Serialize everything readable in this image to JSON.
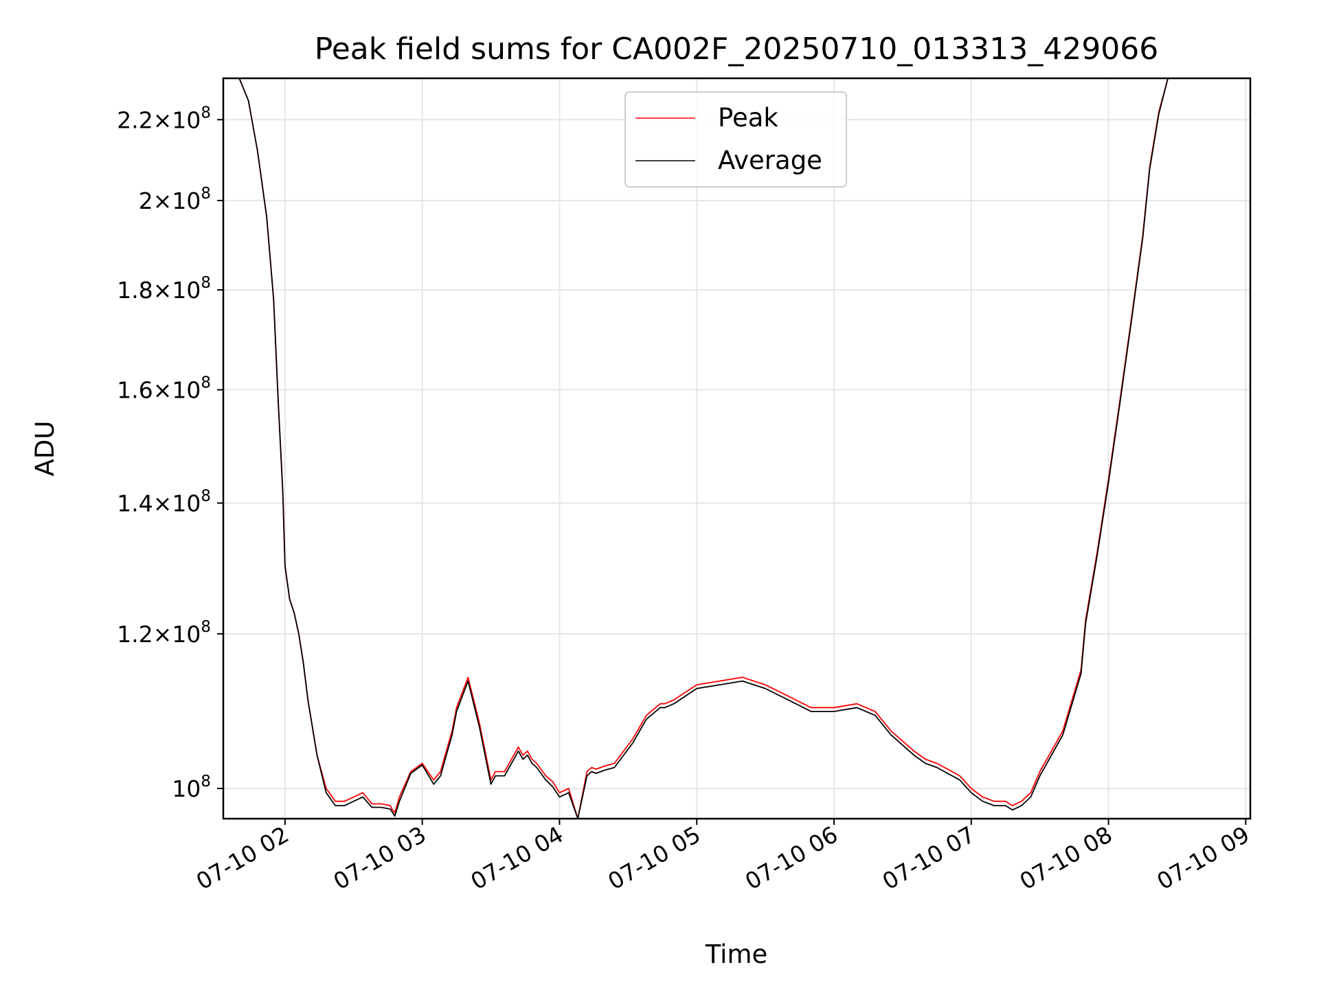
{
  "chart_data": {
    "type": "line",
    "title": "Peak field sums for CA002F_20250710_013313_429066",
    "xlabel": "Time",
    "ylabel": "ADU",
    "y_scale": "log",
    "grid": true,
    "legend_position": "top-center",
    "xlim": [
      "2025-07-10 01:33",
      "2025-07-10 09:02"
    ],
    "ylim": [
      96500000,
      231000000
    ],
    "x_ticks": [
      "07-10 02",
      "07-10 03",
      "07-10 04",
      "07-10 05",
      "07-10 06",
      "07-10 07",
      "07-10 08",
      "07-10 09"
    ],
    "y_ticks": [
      {
        "value": 100000000,
        "mantissa": "",
        "exponent": "8"
      },
      {
        "value": 120000000,
        "mantissa": "1.2",
        "exponent": "8"
      },
      {
        "value": 140000000,
        "mantissa": "1.4",
        "exponent": "8"
      },
      {
        "value": 160000000,
        "mantissa": "1.6",
        "exponent": "8"
      },
      {
        "value": 180000000,
        "mantissa": "1.8",
        "exponent": "8"
      },
      {
        "value": 200000000,
        "mantissa": "2",
        "exponent": "8"
      },
      {
        "value": 220000000,
        "mantissa": "2.2",
        "exponent": "8"
      }
    ],
    "series": [
      {
        "name": "Peak",
        "color": "#ff0000",
        "x": [
          "01:33",
          "01:40",
          "01:44",
          "01:48",
          "01:52",
          "01:55",
          "01:57",
          "01:59",
          "02:00",
          "02:02",
          "02:04",
          "02:06",
          "02:08",
          "02:10",
          "02:14",
          "02:18",
          "02:22",
          "02:26",
          "02:30",
          "02:34",
          "02:38",
          "02:42",
          "02:46",
          "02:47",
          "02:48",
          "02:50",
          "02:55",
          "03:00",
          "03:05",
          "03:08",
          "03:10",
          "03:13",
          "03:15",
          "03:20",
          "03:25",
          "03:30",
          "03:32",
          "03:36",
          "03:40",
          "03:42",
          "03:44",
          "03:46",
          "03:48",
          "03:50",
          "03:54",
          "03:57",
          "04:00",
          "04:04",
          "04:08",
          "04:12",
          "04:14",
          "04:16",
          "04:20",
          "04:24",
          "04:28",
          "04:32",
          "04:34",
          "04:36",
          "04:38",
          "04:42",
          "04:44",
          "04:46",
          "04:50",
          "04:55",
          "05:00",
          "05:10",
          "05:20",
          "05:30",
          "05:40",
          "05:50",
          "06:00",
          "06:10",
          "06:18",
          "06:25",
          "06:35",
          "06:40",
          "06:45",
          "06:55",
          "07:00",
          "07:05",
          "07:10",
          "07:15",
          "07:18",
          "07:22",
          "07:26",
          "07:30",
          "07:40",
          "07:48",
          "07:50",
          "07:55",
          "08:00",
          "08:05",
          "08:10",
          "08:15",
          "08:18",
          "08:22",
          "08:26",
          "08:30",
          "08:34",
          "08:38",
          "08:42",
          "08:46",
          "08:50",
          "08:54",
          "08:57",
          "09:02"
        ],
        "values": [
          231000000.0,
          231000000.0,
          225000000.0,
          212000000.0,
          196000000.0,
          178000000.0,
          158000000.0,
          142000000.0,
          130000000.0,
          125000000.0,
          123000000.0,
          120000000.0,
          116000000.0,
          111000000.0,
          104000000.0,
          100000000.0,
          98500000.0,
          98500000.0,
          99000000.0,
          99500000.0,
          98200000.0,
          98200000.0,
          98000000.0,
          97500000.0,
          97200000.0,
          99000000.0,
          102000000.0,
          103000000.0,
          101000000.0,
          102000000.0,
          104000000.0,
          107000000.0,
          110000000.0,
          114000000.0,
          108000000.0,
          101000000.0,
          102000000.0,
          102000000.0,
          104000000.0,
          105000000.0,
          104000000.0,
          104500000.0,
          103500000.0,
          103000000.0,
          101500000.0,
          100800000.0,
          99500000.0,
          100000000.0,
          96500000.0,
          102000000.0,
          102500000.0,
          102300000.0,
          102700000.0,
          103000000.0,
          104500000.0,
          106000000.0,
          107000000.0,
          108000000.0,
          109000000.0,
          110000000.0,
          110500000.0,
          110500000.0,
          111000000.0,
          112000000.0,
          113000000.0,
          113500000.0,
          114000000.0,
          113000000.0,
          111500000.0,
          110000000.0,
          110000000.0,
          110500000.0,
          109500000.0,
          107000000.0,
          104500000.0,
          103500000.0,
          103000000.0,
          101500000.0,
          100000000.0,
          99000000.0,
          98500000.0,
          98500000.0,
          98000000.0,
          98500000.0,
          99500000.0,
          102000000.0,
          107000000.0,
          115000000.0,
          122000000.0,
          132000000.0,
          144000000.0,
          158000000.0,
          174000000.0,
          192000000.0,
          208000000.0,
          222000000.0,
          231000000.0,
          231000000.0,
          231000000.0,
          231000000.0,
          231000000.0,
          231000000.0,
          231000000.0,
          231000000.0,
          231000000.0,
          231000000.0
        ]
      },
      {
        "name": "Average",
        "color": "#000000",
        "x": [
          "01:33",
          "01:40",
          "01:44",
          "01:48",
          "01:52",
          "01:55",
          "01:57",
          "01:59",
          "02:00",
          "02:02",
          "02:04",
          "02:06",
          "02:08",
          "02:10",
          "02:14",
          "02:18",
          "02:22",
          "02:26",
          "02:30",
          "02:34",
          "02:38",
          "02:42",
          "02:46",
          "02:47",
          "02:48",
          "02:50",
          "02:55",
          "03:00",
          "03:05",
          "03:08",
          "03:10",
          "03:13",
          "03:15",
          "03:20",
          "03:25",
          "03:30",
          "03:32",
          "03:36",
          "03:40",
          "03:42",
          "03:44",
          "03:46",
          "03:48",
          "03:50",
          "03:54",
          "03:57",
          "04:00",
          "04:04",
          "04:08",
          "04:12",
          "04:14",
          "04:16",
          "04:20",
          "04:24",
          "04:28",
          "04:32",
          "04:34",
          "04:36",
          "04:38",
          "04:42",
          "04:44",
          "04:46",
          "04:50",
          "04:55",
          "05:00",
          "05:10",
          "05:20",
          "05:30",
          "05:40",
          "05:50",
          "06:00",
          "06:10",
          "06:18",
          "06:25",
          "06:35",
          "06:40",
          "06:45",
          "06:55",
          "07:00",
          "07:05",
          "07:10",
          "07:15",
          "07:18",
          "07:22",
          "07:26",
          "07:30",
          "07:40",
          "07:48",
          "07:50",
          "07:55",
          "08:00",
          "08:05",
          "08:10",
          "08:15",
          "08:18",
          "08:22",
          "08:26",
          "08:30",
          "08:34",
          "08:38",
          "08:42",
          "08:46",
          "08:50",
          "08:54",
          "08:57",
          "09:02"
        ],
        "values": [
          231000000.0,
          231000000.0,
          225000000.0,
          212000000.0,
          196000000.0,
          178000000.0,
          158000000.0,
          142000000.0,
          130000000.0,
          125000000.0,
          123000000.0,
          120000000.0,
          116000000.0,
          111000000.0,
          104000000.0,
          99500000.0,
          98000000.0,
          98000000.0,
          98500000.0,
          99000000.0,
          97800000.0,
          97800000.0,
          97600000.0,
          97200000.0,
          96800000.0,
          98500000.0,
          101800000.0,
          102800000.0,
          100500000.0,
          101500000.0,
          103500000.0,
          106500000.0,
          109500000.0,
          113500000.0,
          107500000.0,
          100500000.0,
          101500000.0,
          101500000.0,
          103500000.0,
          104500000.0,
          103500000.0,
          104000000.0,
          103000000.0,
          102500000.0,
          101000000.0,
          100200000.0,
          99000000.0,
          99500000.0,
          96000000.0,
          101500000.0,
          102000000.0,
          101800000.0,
          102200000.0,
          102500000.0,
          104000000.0,
          105500000.0,
          106500000.0,
          107500000.0,
          108500000.0,
          109500000.0,
          110000000.0,
          110000000.0,
          110500000.0,
          111500000.0,
          112500000.0,
          113000000.0,
          113500000.0,
          112500000.0,
          111000000.0,
          109500000.0,
          109500000.0,
          110000000.0,
          109000000.0,
          106500000.0,
          104000000.0,
          103000000.0,
          102500000.0,
          101000000.0,
          99500000.0,
          98500000.0,
          98000000.0,
          98000000.0,
          97500000.0,
          98000000.0,
          99000000.0,
          101500000.0,
          106500000.0,
          114500000.0,
          121500000.0,
          131500000.0,
          143500000.0,
          157500000.0,
          173500000.0,
          191500000.0,
          207500000.0,
          221500000.0,
          231000000.0,
          231000000.0,
          231000000.0,
          231000000.0,
          231000000.0,
          231000000.0,
          231000000.0,
          231000000.0,
          231000000.0,
          231000000.0
        ]
      }
    ]
  }
}
